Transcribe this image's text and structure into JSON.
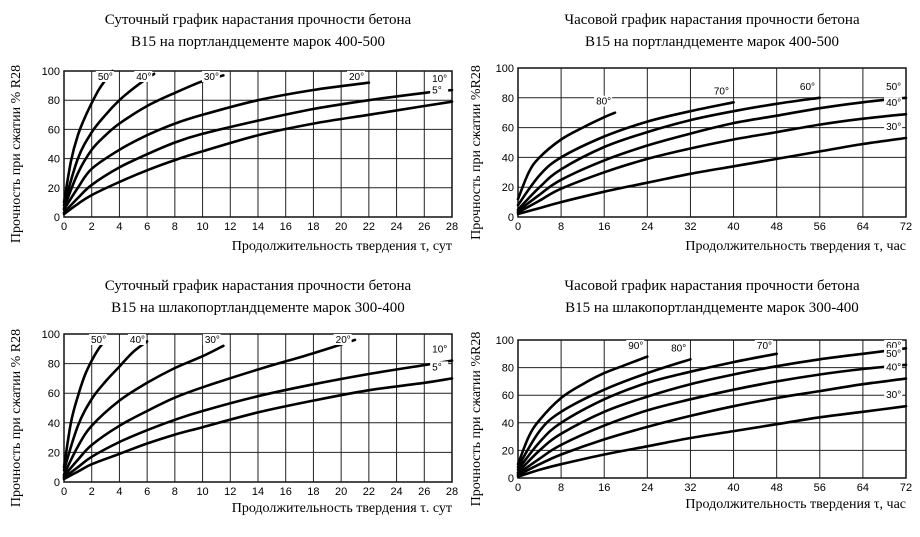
{
  "chart_data": [
    {
      "type": "line",
      "title_lines": [
        "Суточный график нарастания прочности бетона",
        "В15 на портландцементе марок 400-500"
      ],
      "xlabel": "Продолжительность твердения τ, сут",
      "ylabel": "Прочность при сжатии % R28",
      "xticks": [
        0,
        2,
        4,
        6,
        8,
        10,
        12,
        14,
        16,
        18,
        20,
        22,
        24,
        26,
        28
      ],
      "yticks": [
        0,
        20,
        40,
        60,
        80,
        100
      ],
      "xlim": [
        0,
        28
      ],
      "ylim": [
        0,
        100
      ],
      "grid": true,
      "series": [
        {
          "name": "50°",
          "x": [
            0,
            0.5,
            1,
            1.5,
            2,
            2.5,
            3,
            3.5
          ],
          "y": [
            10,
            38,
            56,
            68,
            78,
            87,
            94,
            100
          ]
        },
        {
          "name": "40°",
          "x": [
            0,
            1,
            2,
            3,
            4,
            5,
            6,
            6.5
          ],
          "y": [
            8,
            40,
            58,
            70,
            80,
            88,
            95,
            98
          ]
        },
        {
          "name": "30°",
          "x": [
            0,
            1,
            2,
            3,
            4,
            6,
            8,
            10,
            11.5
          ],
          "y": [
            6,
            30,
            46,
            56,
            64,
            76,
            85,
            93,
            97
          ]
        },
        {
          "name": "20°",
          "x": [
            0,
            1,
            2,
            4,
            6,
            8,
            10,
            14,
            18,
            22
          ],
          "y": [
            5,
            20,
            33,
            46,
            56,
            64,
            70,
            80,
            87,
            92
          ]
        },
        {
          "name": "10°",
          "x": [
            0,
            1,
            2,
            4,
            6,
            8,
            10,
            14,
            18,
            22,
            26,
            28
          ],
          "y": [
            3,
            13,
            22,
            34,
            43,
            51,
            57,
            66,
            74,
            80,
            85,
            87
          ]
        },
        {
          "name": "5°",
          "x": [
            0,
            1,
            2,
            4,
            6,
            8,
            10,
            14,
            18,
            22,
            26,
            28
          ],
          "y": [
            2,
            9,
            15,
            24,
            32,
            39,
            45,
            56,
            64,
            70,
            76,
            79
          ]
        }
      ]
    },
    {
      "type": "line",
      "title_lines": [
        "Часовой график нарастания прочности бетона",
        "В15 на портландцементе марок 400-500"
      ],
      "xlabel": "Продолжительность твердения τ, час",
      "ylabel": "Прочность при сжатии %R28",
      "xticks": [
        0,
        8,
        16,
        24,
        32,
        40,
        48,
        56,
        64,
        72
      ],
      "yticks": [
        0,
        20,
        40,
        60,
        80,
        100
      ],
      "xlim": [
        0,
        72
      ],
      "ylim": [
        0,
        100
      ],
      "grid": true,
      "series": [
        {
          "name": "80°",
          "x": [
            0,
            2,
            4,
            8,
            12,
            16,
            18
          ],
          "y": [
            12,
            30,
            40,
            52,
            60,
            67,
            70
          ]
        },
        {
          "name": "70°",
          "x": [
            0,
            4,
            8,
            16,
            24,
            32,
            40
          ],
          "y": [
            8,
            28,
            40,
            54,
            64,
            71,
            77
          ]
        },
        {
          "name": "60°",
          "x": [
            0,
            4,
            8,
            16,
            24,
            32,
            40,
            48,
            56
          ],
          "y": [
            5,
            20,
            32,
            47,
            57,
            65,
            71,
            76,
            80
          ]
        },
        {
          "name": "50°",
          "x": [
            0,
            4,
            8,
            16,
            24,
            32,
            40,
            48,
            56,
            64,
            72
          ],
          "y": [
            4,
            15,
            25,
            38,
            48,
            56,
            63,
            68,
            73,
            77,
            80
          ]
        },
        {
          "name": "40°",
          "x": [
            0,
            4,
            8,
            16,
            24,
            32,
            40,
            48,
            56,
            64,
            72
          ],
          "y": [
            3,
            11,
            19,
            30,
            39,
            46,
            52,
            57,
            62,
            66,
            69
          ]
        },
        {
          "name": "30°",
          "x": [
            0,
            4,
            8,
            16,
            24,
            32,
            40,
            48,
            56,
            64,
            72
          ],
          "y": [
            2,
            6,
            10,
            17,
            23,
            29,
            34,
            39,
            44,
            49,
            53
          ]
        }
      ]
    },
    {
      "type": "line",
      "title_lines": [
        "Суточный график нарастания прочности бетона",
        "В15 на шлакопортландцементе марок 300-400"
      ],
      "xlabel": "Продолжительность твердения τ. сут",
      "ylabel": "Прочность при сжатии % R28",
      "xticks": [
        0,
        2,
        4,
        6,
        8,
        10,
        12,
        14,
        16,
        18,
        20,
        22,
        24,
        26,
        28
      ],
      "yticks": [
        0,
        20,
        40,
        60,
        80,
        100
      ],
      "xlim": [
        0,
        28
      ],
      "ylim": [
        0,
        100
      ],
      "grid": true,
      "series": [
        {
          "name": "50°",
          "x": [
            0,
            0.5,
            1,
            1.5,
            2,
            2.5,
            3
          ],
          "y": [
            10,
            40,
            58,
            72,
            82,
            90,
            96
          ]
        },
        {
          "name": "40°",
          "x": [
            0,
            1,
            2,
            3,
            4,
            5,
            6
          ],
          "y": [
            8,
            38,
            56,
            68,
            78,
            88,
            95
          ]
        },
        {
          "name": "30°",
          "x": [
            0,
            1,
            2,
            4,
            6,
            8,
            10,
            11.5
          ],
          "y": [
            5,
            24,
            38,
            55,
            67,
            77,
            85,
            92
          ]
        },
        {
          "name": "20°",
          "x": [
            0,
            1,
            2,
            4,
            6,
            8,
            10,
            14,
            18,
            21
          ],
          "y": [
            4,
            15,
            25,
            38,
            48,
            57,
            64,
            76,
            87,
            96
          ]
        },
        {
          "name": "10°",
          "x": [
            0,
            1,
            2,
            4,
            6,
            8,
            10,
            14,
            18,
            22,
            26,
            28
          ],
          "y": [
            3,
            10,
            17,
            27,
            35,
            42,
            48,
            58,
            66,
            73,
            79,
            82
          ]
        },
        {
          "name": "5°",
          "x": [
            0,
            1,
            2,
            4,
            6,
            8,
            10,
            14,
            18,
            22,
            26,
            28
          ],
          "y": [
            2,
            7,
            12,
            19,
            26,
            32,
            37,
            47,
            55,
            62,
            67,
            70
          ]
        }
      ]
    },
    {
      "type": "line",
      "title_lines": [
        "Часовой график нарастания прочности бетона",
        "В15 на шлакопортландцементе марок 300-400"
      ],
      "xlabel": "Продолжительность твердения τ, час",
      "ylabel": "Прочность при сжатии %R28",
      "xticks": [
        0,
        8,
        16,
        24,
        32,
        40,
        48,
        56,
        64,
        72
      ],
      "yticks": [
        0,
        20,
        40,
        60,
        80,
        100
      ],
      "xlim": [
        0,
        72
      ],
      "ylim": [
        0,
        100
      ],
      "grid": true,
      "series": [
        {
          "name": "90°",
          "x": [
            0,
            2,
            4,
            8,
            12,
            16,
            20,
            24
          ],
          "y": [
            10,
            30,
            42,
            58,
            68,
            76,
            82,
            88
          ]
        },
        {
          "name": "80°",
          "x": [
            0,
            4,
            8,
            16,
            24,
            32
          ],
          "y": [
            8,
            34,
            48,
            64,
            76,
            86
          ]
        },
        {
          "name": "70°",
          "x": [
            0,
            4,
            8,
            16,
            24,
            32,
            40,
            48
          ],
          "y": [
            6,
            26,
            40,
            57,
            69,
            77,
            84,
            90
          ]
        },
        {
          "name": "60°",
          "x": [
            0,
            4,
            8,
            16,
            24,
            32,
            40,
            48,
            56,
            64,
            72
          ],
          "y": [
            4,
            20,
            32,
            48,
            59,
            68,
            75,
            81,
            86,
            90,
            94
          ]
        },
        {
          "name": "50°",
          "x": [
            0,
            4,
            8,
            16,
            24,
            32,
            40,
            48,
            56,
            64,
            72
          ],
          "y": [
            3,
            14,
            24,
            38,
            49,
            57,
            64,
            70,
            75,
            79,
            82
          ]
        },
        {
          "name": "40°",
          "x": [
            0,
            4,
            8,
            16,
            24,
            32,
            40,
            48,
            56,
            64,
            72
          ],
          "y": [
            2,
            10,
            17,
            28,
            37,
            45,
            52,
            58,
            63,
            68,
            72
          ]
        },
        {
          "name": "30°",
          "x": [
            0,
            4,
            8,
            16,
            24,
            32,
            40,
            48,
            56,
            64,
            72
          ],
          "y": [
            1,
            6,
            10,
            17,
            23,
            29,
            34,
            39,
            44,
            48,
            52
          ]
        }
      ]
    }
  ]
}
